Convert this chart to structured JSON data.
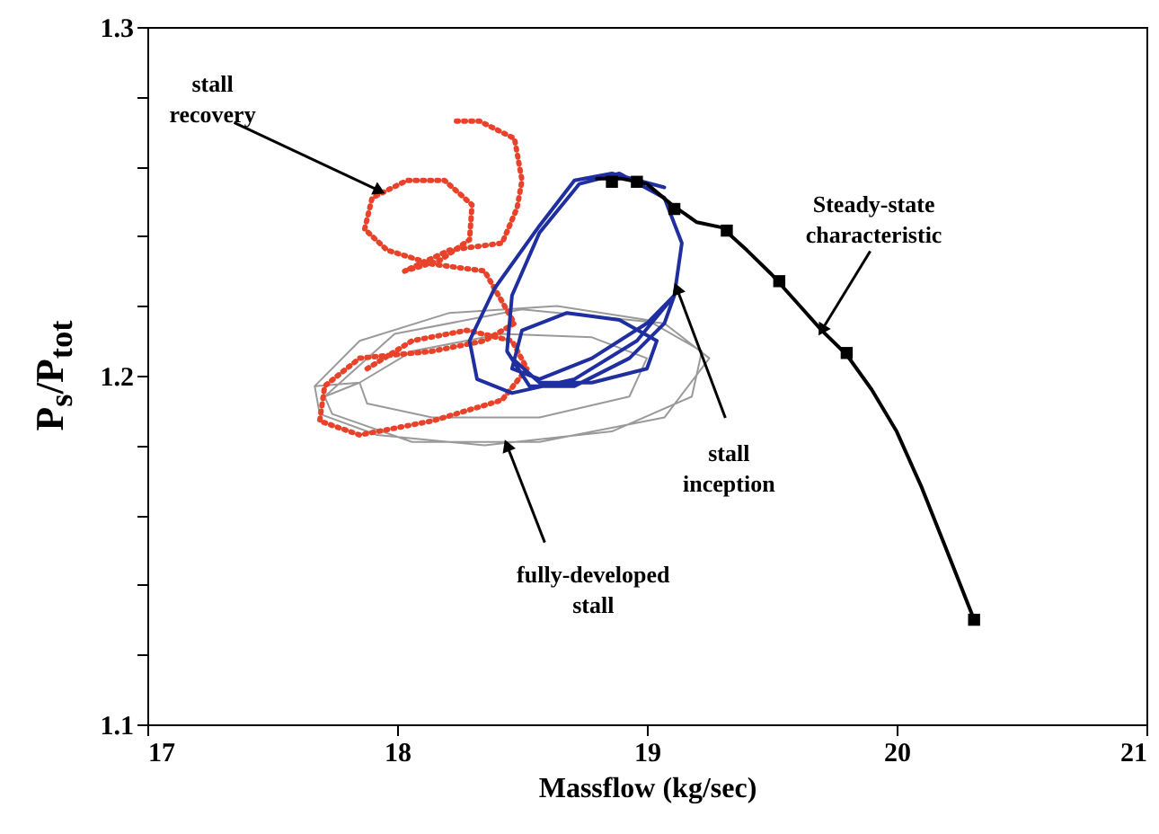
{
  "chart_data": {
    "type": "line",
    "xlabel": "Massflow (kg/sec)",
    "ylabel": "P$_{s}$/P$_{tot}$",
    "xlim": [
      17,
      21
    ],
    "ylim": [
      1.1,
      1.3
    ],
    "xticks": [
      17,
      18,
      19,
      20,
      21
    ],
    "yticks": [
      1.1,
      {
        "value": 1.12,
        "label": null
      },
      {
        "value": 1.14,
        "label": null
      },
      {
        "value": 1.16,
        "label": null
      },
      {
        "value": 1.18,
        "label": null
      },
      1.2,
      {
        "value": 1.22,
        "label": null
      },
      {
        "value": 1.24,
        "label": null
      },
      {
        "value": 1.26,
        "label": null
      },
      {
        "value": 1.28,
        "label": null
      },
      1.3
    ],
    "series": [
      {
        "type": "line",
        "color": "#9a9a9a",
        "x": [
          17.67,
          17.85,
          18.21,
          18.64,
          19.0,
          19.22,
          19.18,
          18.86,
          18.35,
          17.92,
          17.69,
          17.67,
          17.85,
          18.06,
          18.42,
          18.78,
          19.0,
          18.93,
          18.57,
          18.14,
          17.88,
          17.85,
          17.71,
          17.99,
          18.5,
          19.07,
          19.25,
          19.07,
          18.57,
          18.06,
          17.74,
          17.71
        ],
        "values": [
          1.197,
          1.21,
          1.218,
          1.22,
          1.216,
          1.207,
          1.194,
          1.184,
          1.18,
          1.183,
          1.189,
          1.197,
          1.198,
          1.207,
          1.212,
          1.211,
          1.205,
          1.194,
          1.188,
          1.188,
          1.192,
          1.198,
          1.194,
          1.212,
          1.219,
          1.215,
          1.205,
          1.188,
          1.181,
          1.181,
          1.189,
          1.194
        ]
      },
      {
        "type": "line",
        "line_style": "dotted",
        "color": "#e8432a",
        "x": [
          17.88,
          18.06,
          18.28,
          18.46,
          18.52,
          18.42,
          18.14,
          17.85,
          17.69,
          17.71,
          17.85,
          18.14,
          18.35,
          18.47,
          18.35,
          18.14,
          17.96,
          17.87,
          17.9,
          18.04,
          18.19,
          18.3,
          18.29,
          18.17,
          18.03,
          18.21,
          18.42,
          18.48,
          18.5,
          18.47,
          18.33,
          18.22
        ],
        "values": [
          1.202,
          1.21,
          1.213,
          1.21,
          1.202,
          1.193,
          1.187,
          1.183,
          1.187,
          1.197,
          1.205,
          1.207,
          1.21,
          1.215,
          1.23,
          1.232,
          1.236,
          1.242,
          1.251,
          1.256,
          1.256,
          1.249,
          1.239,
          1.233,
          1.23,
          1.236,
          1.238,
          1.248,
          1.256,
          1.268,
          1.273,
          1.273
        ]
      },
      {
        "type": "line",
        "color": "#1f2fa0",
        "x": [
          19.07,
          18.86,
          18.71,
          18.57,
          18.39,
          18.29,
          18.32,
          18.46,
          18.71,
          18.96,
          19.11,
          19.14,
          19.07,
          18.89,
          18.73,
          18.57,
          18.46,
          18.44,
          18.53,
          18.71,
          18.93,
          19.07,
          19.11,
          19.0,
          18.78,
          18.57,
          18.46,
          18.5,
          18.68,
          18.89,
          19.04,
          19.0,
          18.78,
          18.57,
          18.46
        ],
        "values": [
          1.254,
          1.258,
          1.256,
          1.243,
          1.225,
          1.21,
          1.199,
          1.195,
          1.199,
          1.21,
          1.223,
          1.238,
          1.251,
          1.258,
          1.255,
          1.241,
          1.223,
          1.207,
          1.197,
          1.197,
          1.205,
          1.215,
          1.223,
          1.215,
          1.205,
          1.199,
          1.202,
          1.213,
          1.218,
          1.216,
          1.21,
          1.202,
          1.198,
          1.198,
          1.205
        ]
      },
      {
        "type": "line",
        "color": "#000000",
        "x": [
          18.8,
          18.9,
          19.0,
          19.1,
          19.2,
          19.3,
          19.4,
          19.5,
          19.6,
          19.7,
          19.8,
          19.9,
          20.0,
          20.1,
          20.2,
          20.31
        ],
        "values": [
          1.2565,
          1.2565,
          1.255,
          1.249,
          1.244,
          1.2425,
          1.236,
          1.229,
          1.221,
          1.213,
          1.206,
          1.196,
          1.184,
          1.168,
          1.15,
          1.13
        ]
      },
      {
        "type": "scatter",
        "marker": "square",
        "color": "#000000",
        "x": [
          18.86,
          18.96,
          19.11,
          19.32,
          19.53,
          19.8,
          20.31
        ],
        "values": [
          1.2556,
          1.2556,
          1.2478,
          1.2416,
          1.2271,
          1.2065,
          1.13
        ]
      }
    ],
    "annotations": [
      {
        "text": "stall\nrecovery",
        "x": 17.93,
        "y": 1.253
      },
      {
        "text": "Steady-state\ncharacteristic",
        "x": 19.7,
        "y": 1.213
      },
      {
        "text": "stall\ninception",
        "x": 19.12,
        "y": 1.225
      },
      {
        "text": "fully-developed\nstall",
        "x": 18.44,
        "y": 1.18
      }
    ]
  }
}
